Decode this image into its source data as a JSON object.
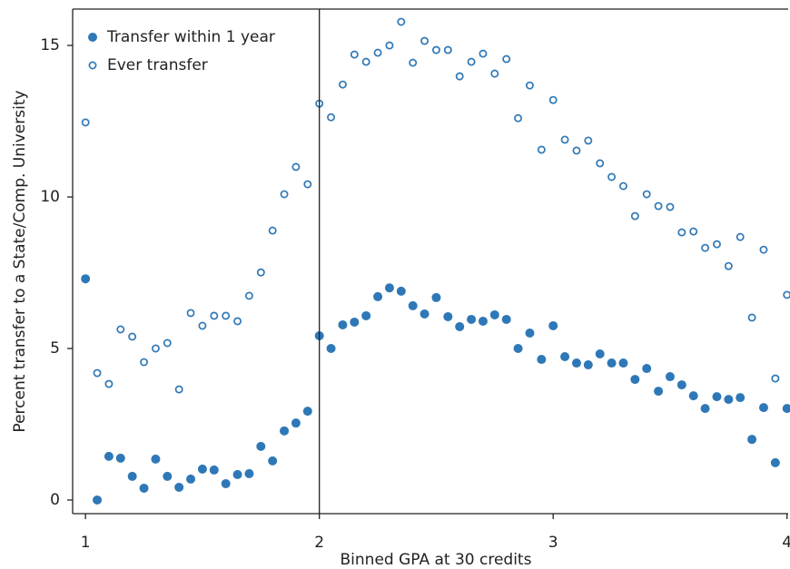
{
  "chart_data": {
    "type": "scatter",
    "x_label": "Binned GPA at 30 credits",
    "y_label": "Percent transfer to a State/Comp. University",
    "x": [
      1,
      1.05,
      1.1,
      1.15,
      1.2,
      1.25,
      1.3,
      1.35,
      1.4,
      1.45,
      1.5,
      1.55,
      1.6,
      1.65,
      1.7,
      1.75,
      1.8,
      1.85,
      1.9,
      1.95,
      2,
      2.05,
      2.1,
      2.15,
      2.2,
      2.25,
      2.3,
      2.35,
      2.4,
      2.45,
      2.5,
      2.55,
      2.6,
      2.65,
      2.7,
      2.75,
      2.8,
      2.85,
      2.9,
      2.95,
      3,
      3.05,
      3.1,
      3.15,
      3.2,
      3.25,
      3.3,
      3.35,
      3.4,
      3.45,
      3.5,
      3.55,
      3.6,
      3.65,
      3.7,
      3.75,
      3.8,
      3.85,
      3.9,
      3.95,
      4
    ],
    "series": [
      {
        "name": "Transfer within 1 year",
        "color": "#2f78b7",
        "marker": "filled",
        "values": [
          7.3,
          0.0,
          1.44,
          1.38,
          0.78,
          0.39,
          1.35,
          0.78,
          0.42,
          0.69,
          1.02,
          0.99,
          0.54,
          0.84,
          0.87,
          1.77,
          1.29,
          2.28,
          2.54,
          2.93,
          5.42,
          5.0,
          5.78,
          5.87,
          6.08,
          6.71,
          7.0,
          6.89,
          6.41,
          6.14,
          6.68,
          6.05,
          5.72,
          5.96,
          5.9,
          6.11,
          5.96,
          5.0,
          5.51,
          4.64,
          5.75,
          4.73,
          4.52,
          4.46,
          4.82,
          4.52,
          4.52,
          3.98,
          4.34,
          3.59,
          4.07,
          3.8,
          3.44,
          3.02,
          3.41,
          3.32,
          3.38,
          2.0,
          3.05,
          1.23,
          3.02
        ]
      },
      {
        "name": "Ever transfer",
        "color": "#2f78b7",
        "marker": "hollow",
        "values": [
          12.46,
          4.19,
          3.83,
          5.63,
          5.39,
          4.55,
          5.0,
          5.18,
          3.65,
          6.17,
          5.75,
          6.08,
          6.08,
          5.9,
          6.74,
          7.51,
          8.89,
          10.09,
          10.99,
          10.42,
          13.08,
          12.63,
          13.71,
          14.7,
          14.46,
          14.76,
          15.0,
          15.78,
          14.43,
          15.15,
          14.85,
          14.85,
          13.98,
          14.46,
          14.73,
          14.07,
          14.55,
          12.6,
          13.68,
          11.56,
          13.2,
          11.89,
          11.53,
          11.86,
          11.11,
          10.66,
          10.36,
          9.37,
          10.09,
          9.7,
          9.67,
          8.83,
          8.86,
          8.32,
          8.44,
          7.72,
          8.68,
          6.02,
          8.26,
          4.01,
          6.77
        ]
      }
    ],
    "xlim": [
      0.945,
      4.005
    ],
    "xticks": [
      1,
      2,
      3,
      4
    ],
    "ylim": [
      -0.45,
      16.2
    ],
    "yticks": [
      0,
      5,
      10,
      15
    ],
    "vline": 2,
    "grid": false,
    "legend": "top-left"
  }
}
